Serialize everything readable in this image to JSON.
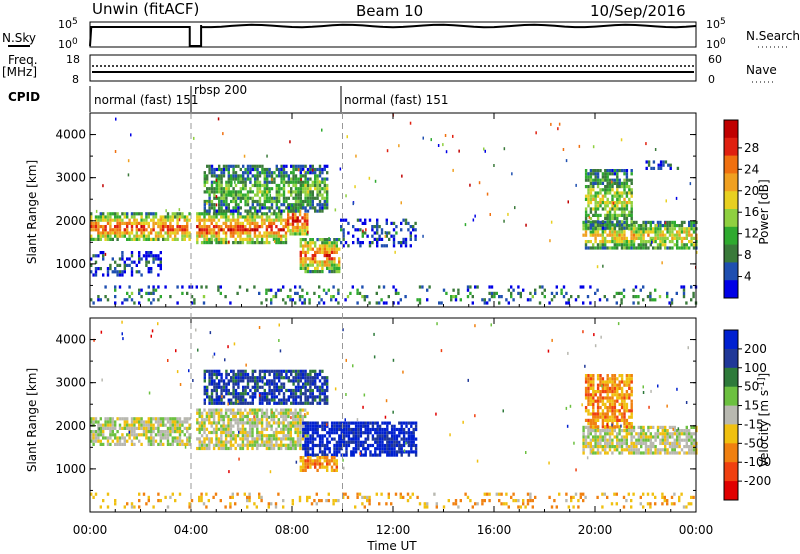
{
  "header": {
    "station": "Unwin (fitACF)",
    "beam": "Beam 10",
    "date": "10/Sep/2016"
  },
  "side_labels": {
    "nsky": "N.Sky",
    "freq": "Freq.",
    "freq_unit": "[MHz]",
    "cpid": "CPID",
    "nsearch": "N.Search",
    "nave": "Nave"
  },
  "top_ticks": {
    "nsky_hi": "10^5",
    "nsky_lo": "10^0",
    "freq_hi": "18",
    "freq_lo": "8",
    "nave_hi": "60",
    "nave_lo": "0"
  },
  "cpid_labels": [
    {
      "text": "normal (fast) 151",
      "hour": 0.0
    },
    {
      "text": "rbsp 200",
      "hour": 4.0
    },
    {
      "text": "normal (fast) 151",
      "hour": 10.0
    }
  ],
  "chart_data": [
    {
      "type": "heatmap",
      "name": "power",
      "ylabel": "Slant Range [km]",
      "xlabel": "",
      "xlim_hours": [
        0,
        24
      ],
      "ylim": [
        0,
        4500
      ],
      "yticks": [
        1000,
        2000,
        3000,
        4000
      ],
      "colorbar": {
        "label": "Power [dB]",
        "ticks": [
          "4",
          "8",
          "12",
          "16",
          "20",
          "24",
          "28"
        ],
        "colors": [
          "#0000e6",
          "#1f4fb0",
          "#3a7a3a",
          "#2faa2f",
          "#8fd040",
          "#e8d020",
          "#f0a020",
          "#f07010",
          "#e02010",
          "#c00000"
        ]
      },
      "regions": [
        {
          "t0": 0.0,
          "t1": 3.9,
          "r0": 1550,
          "r1": 2200,
          "level": 0.8
        },
        {
          "t0": 4.2,
          "t1": 7.8,
          "r0": 1500,
          "r1": 2200,
          "level": 0.85
        },
        {
          "t0": 7.8,
          "t1": 8.6,
          "r0": 1700,
          "r1": 2400,
          "level": 0.9
        },
        {
          "t0": 8.3,
          "t1": 9.9,
          "r0": 850,
          "r1": 1600,
          "level": 0.8
        },
        {
          "t0": 4.5,
          "t1": 9.4,
          "r0": 2200,
          "r1": 3300,
          "level": 0.4
        },
        {
          "t0": 9.9,
          "t1": 12.9,
          "r0": 1450,
          "r1": 2050,
          "level": 0.2
        },
        {
          "t0": 0.0,
          "t1": 2.8,
          "r0": 750,
          "r1": 1300,
          "level": 0.15
        },
        {
          "t0": 19.5,
          "t1": 24.0,
          "r0": 1350,
          "r1": 2000,
          "level": 0.6
        },
        {
          "t0": 19.6,
          "t1": 21.5,
          "r0": 1800,
          "r1": 3200,
          "level": 0.5
        },
        {
          "t0": 22.0,
          "t1": 23.3,
          "r0": 3200,
          "r1": 3400,
          "level": 0.15
        },
        {
          "t0": 0.0,
          "t1": 24.0,
          "r0": 100,
          "r1": 500,
          "level": 0.3
        }
      ]
    },
    {
      "type": "heatmap",
      "name": "velocity",
      "ylabel": "Slant Range [km]",
      "xlabel": "Time UT",
      "xlim_hours": [
        0,
        24
      ],
      "ylim": [
        0,
        4500
      ],
      "yticks": [
        1000,
        2000,
        3000,
        4000
      ],
      "xticks": [
        "00:00",
        "04:00",
        "08:00",
        "12:00",
        "16:00",
        "20:00",
        "00:00"
      ],
      "colorbar": {
        "label": "Velocity [m s^-1]",
        "ticks": [
          "200",
          "100",
          "50",
          "15",
          "-15",
          "-50",
          "-100",
          "-200"
        ],
        "colors": [
          "#0020d0",
          "#203898",
          "#2e7a3a",
          "#6cc040",
          "#b8b8b0",
          "#f0c010",
          "#f08010",
          "#f04010",
          "#e00000"
        ]
      },
      "regions": [
        {
          "t0": 0.0,
          "t1": 3.9,
          "r0": 1550,
          "r1": 2200,
          "level": 0.5
        },
        {
          "t0": 4.2,
          "t1": 8.6,
          "r0": 1500,
          "r1": 2400,
          "level": 0.5
        },
        {
          "t0": 8.4,
          "t1": 12.9,
          "r0": 1300,
          "r1": 2100,
          "level": 0.95
        },
        {
          "t0": 8.3,
          "t1": 9.8,
          "r0": 950,
          "r1": 1300,
          "level": 0.3
        },
        {
          "t0": 4.5,
          "t1": 9.4,
          "r0": 2500,
          "r1": 3300,
          "level": 0.85
        },
        {
          "t0": 19.5,
          "t1": 24.0,
          "r0": 1400,
          "r1": 2000,
          "level": 0.5
        },
        {
          "t0": 19.6,
          "t1": 21.5,
          "r0": 2000,
          "r1": 3200,
          "level": 0.3
        },
        {
          "t0": 0.0,
          "t1": 24.0,
          "r0": 100,
          "r1": 450,
          "level": 0.35
        }
      ]
    }
  ],
  "timeseries": {
    "nsky_gap_hours": [
      3.95,
      4.4
    ]
  }
}
